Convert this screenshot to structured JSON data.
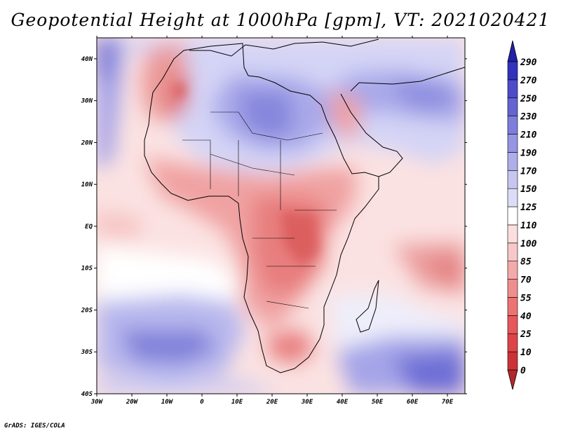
{
  "title": "Geopotential Height at 1000hPa [gpm], VT: 2021020421",
  "footer": "GrADS: IGES/COLA",
  "chart_data": {
    "type": "heatmap",
    "variable": "Geopotential Height at 1000hPa",
    "units": "gpm",
    "valid_time": "2021020421",
    "x_ticks": [
      "30W",
      "20W",
      "10W",
      "0",
      "10E",
      "20E",
      "30E",
      "40E",
      "50E",
      "60E",
      "70E"
    ],
    "y_ticks": [
      "40S",
      "30S",
      "20S",
      "10S",
      "EQ",
      "10N",
      "20N",
      "30N",
      "40N"
    ],
    "lon_range": [
      -30,
      75
    ],
    "lat_range": [
      -40,
      45
    ],
    "colorbar": {
      "levels": [
        "0",
        "10",
        "25",
        "40",
        "55",
        "70",
        "85",
        "100",
        "110",
        "125",
        "150",
        "170",
        "190",
        "210",
        "230",
        "250",
        "270",
        "290"
      ],
      "colors": [
        "#b3282b",
        "#cc3336",
        "#dd4448",
        "#e6585b",
        "#ed7373",
        "#f08e8e",
        "#f4aaaa",
        "#f8c7c7",
        "#fcdede",
        "#ffffff",
        "#dcdcf8",
        "#c6c6f0",
        "#aeaeea",
        "#9595e2",
        "#7d7ddb",
        "#6464d2",
        "#4c4cca",
        "#3232bd",
        "#2020a8"
      ]
    }
  }
}
